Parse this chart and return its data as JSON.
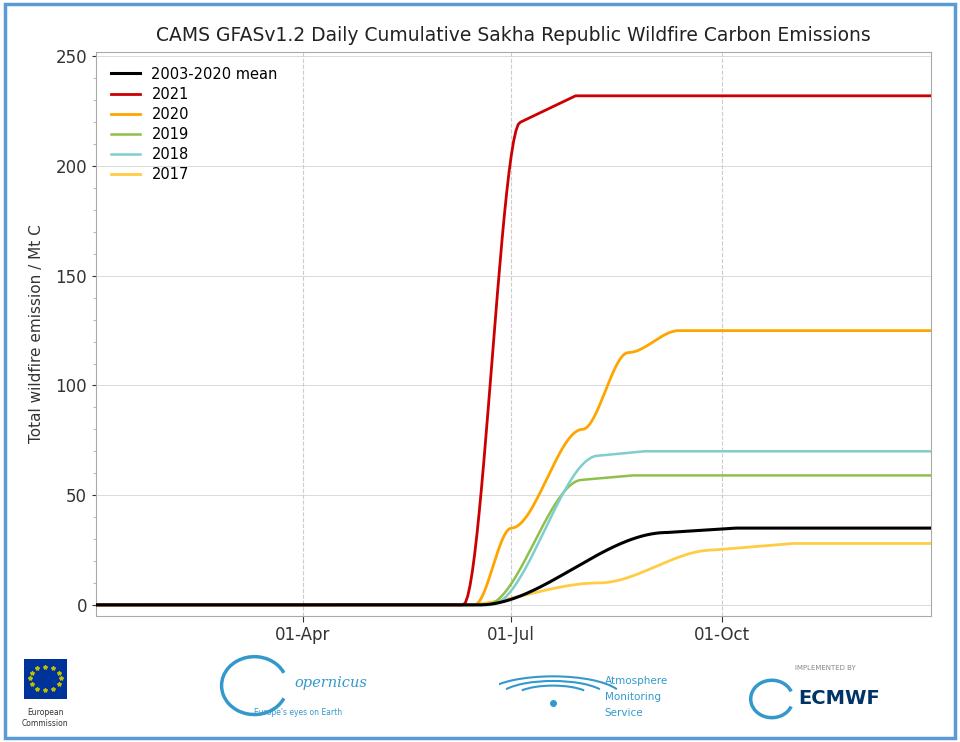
{
  "title": "CAMS GFASv1.2 Daily Cumulative Sakha Republic Wildfire Carbon Emissions",
  "ylabel": "Total wildfire emission / Mt C",
  "ylim": [
    -5,
    252
  ],
  "yticks": [
    0,
    50,
    100,
    150,
    200,
    250
  ],
  "background_color": "#ffffff",
  "border_color": "#5b9bd5",
  "series": {
    "mean": {
      "label": "2003-2020 mean",
      "color": "#000000",
      "linewidth": 2.2
    },
    "y2021": {
      "label": "2021",
      "color": "#cc0000",
      "linewidth": 2.0
    },
    "y2020": {
      "label": "2020",
      "color": "#ffa500",
      "linewidth": 2.0
    },
    "y2019": {
      "label": "2019",
      "color": "#8fc04a",
      "linewidth": 1.8
    },
    "y2018": {
      "label": "2018",
      "color": "#7ecece",
      "linewidth": 1.8
    },
    "y2017": {
      "label": "2017",
      "color": "#ffcc44",
      "linewidth": 2.0
    }
  },
  "xtick_labels": [
    "01-Apr",
    "01-Jul",
    "01-Oct"
  ],
  "grid_color": "#cccccc",
  "tick_color": "#666666"
}
